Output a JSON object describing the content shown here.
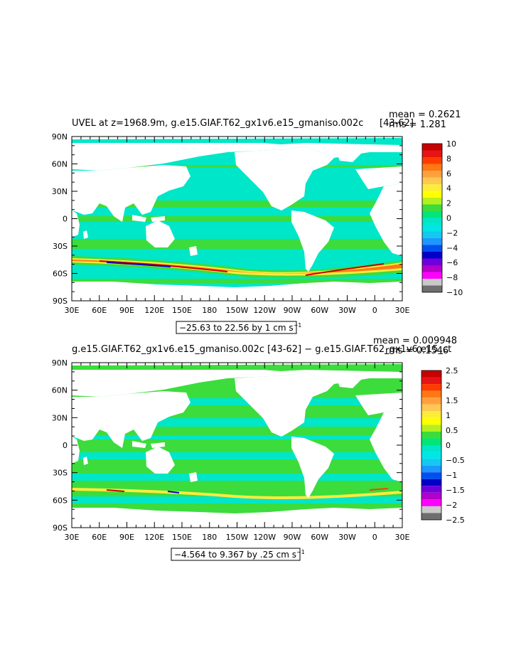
{
  "panels": [
    {
      "title": "UVEL at z=1968.9m, g.e15.GIAF.T62_gx1v6.e15_gmaniso.002c",
      "years": "[43-62]",
      "mean_text": "mean = 0.2621",
      "rms_text": "rms = 1.281",
      "range_text": "−25.63 to 22.56 by 1 cm s",
      "range_sup": "−1",
      "colorbar": {
        "labels": [
          "10",
          "8",
          "6",
          "4",
          "2",
          "0",
          "−2",
          "−4",
          "−6",
          "−8",
          "−10"
        ],
        "colors": [
          "#c80000",
          "#e61414",
          "#ff3c00",
          "#ff7814",
          "#ffa03c",
          "#ffc850",
          "#ffeb3c",
          "#ffff00",
          "#b4f01e",
          "#3cdc3c",
          "#00e678",
          "#00e6c8",
          "#00e6e6",
          "#14c8f0",
          "#1e96ff",
          "#0050f0",
          "#0000c8",
          "#6e00dc",
          "#b400c8",
          "#ff00ff",
          "#c8c8c8",
          "#6e6e6e"
        ]
      }
    },
    {
      "title": "g.e15.GIAF.T62_gx1v6.e15_gmaniso.002c [43-62] − g.e15.GIAF.T62_gx1v6.e15_ct",
      "years": "",
      "mean_text": "mean = 0.009948",
      "rms_text": "rms = 0.1546",
      "range_text": "−4.564 to 9.367 by .25 cm s",
      "range_sup": "−1",
      "colorbar": {
        "labels": [
          "2.5",
          "2",
          "1.5",
          "1",
          "0.5",
          "0",
          "−0.5",
          "−1",
          "−1.5",
          "−2",
          "−2.5"
        ],
        "colors": [
          "#c80000",
          "#e61414",
          "#ff3c00",
          "#ff7814",
          "#ffa03c",
          "#ffc850",
          "#ffeb3c",
          "#ffff00",
          "#b4f01e",
          "#3cdc3c",
          "#00e678",
          "#00e6c8",
          "#00e6e6",
          "#14c8f0",
          "#1e96ff",
          "#0050f0",
          "#0000c8",
          "#6e00dc",
          "#b400c8",
          "#ff00ff",
          "#c8c8c8",
          "#6e6e6e"
        ]
      }
    }
  ],
  "axes": {
    "lat_labels": [
      "90N",
      "60N",
      "30N",
      "0",
      "30S",
      "60S",
      "90S"
    ],
    "lon_labels": [
      "30E",
      "60E",
      "90E",
      "120E",
      "150E",
      "180",
      "150W",
      "120W",
      "90W",
      "60W",
      "30W",
      "0",
      "30E"
    ]
  },
  "colors": {
    "ocean_background": "#00e6c8",
    "ocean_band": "#3cdc3c",
    "land": "#ffffff"
  }
}
